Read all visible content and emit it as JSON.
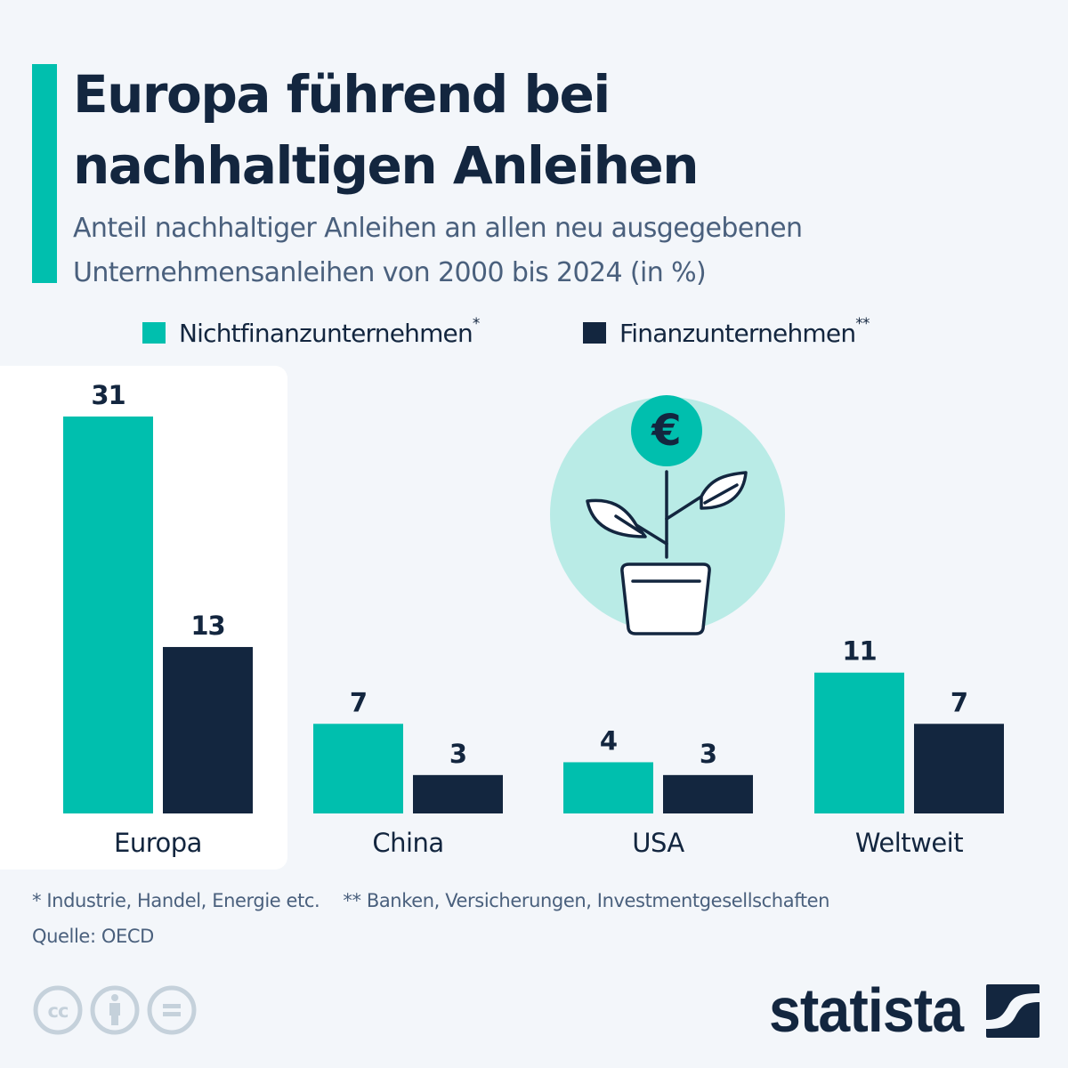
{
  "header": {
    "title_line1": "Europa führend bei",
    "title_line2": "nachhaltigen Anleihen",
    "subtitle_line1": "Anteil nachhaltiger Anleihen an allen neu ausgegebenen",
    "subtitle_line2": "Unternehmensanleihen von 2000 bis 2024 (in %)"
  },
  "legend": [
    {
      "label": "Nichtfinanzunternehmen",
      "marker": "*",
      "color": "#00bfae"
    },
    {
      "label": "Finanzunternehmen",
      "marker": "**",
      "color": "#13263f"
    }
  ],
  "chart_data": {
    "type": "bar",
    "title": "Europa führend bei nachhaltigen Anleihen",
    "subtitle": "Anteil nachhaltiger Anleihen an allen neu ausgegebenen Unternehmensanleihen von 2000 bis 2024 (in %)",
    "xlabel": "",
    "ylabel": "",
    "unit": "%",
    "categories": [
      "Europa",
      "China",
      "USA",
      "Weltweit"
    ],
    "series": [
      {
        "name": "Nichtfinanzunternehmen*",
        "color": "#00bfae",
        "values": [
          31,
          7,
          4,
          11
        ]
      },
      {
        "name": "Finanzunternehmen**",
        "color": "#13263f",
        "values": [
          13,
          3,
          3,
          7
        ]
      }
    ],
    "ylim": [
      0,
      31
    ],
    "grid": false,
    "axis_visible": false,
    "data_labels": true,
    "highlighted_category": "Europa",
    "legend_position": "top-center"
  },
  "illustration": {
    "icon": "plant-with-euro-coin-icon",
    "coin_symbol": "€"
  },
  "footer": {
    "footnote_1": "* Industrie, Handel, Energie etc.",
    "footnote_2": "** Banken, Versicherungen, Investmentgesellschaften",
    "source": "Quelle: OECD",
    "license_icons": [
      "cc-icon",
      "attribution-icon",
      "no-derivatives-icon"
    ],
    "brand": "statista"
  },
  "colors": {
    "background": "#f3f6fa",
    "accent": "#00bfae",
    "dark": "#13263f",
    "muted_text": "#4a607d",
    "illustration_circle": "#b9ebe6",
    "license_icons": "#c5d1db"
  }
}
